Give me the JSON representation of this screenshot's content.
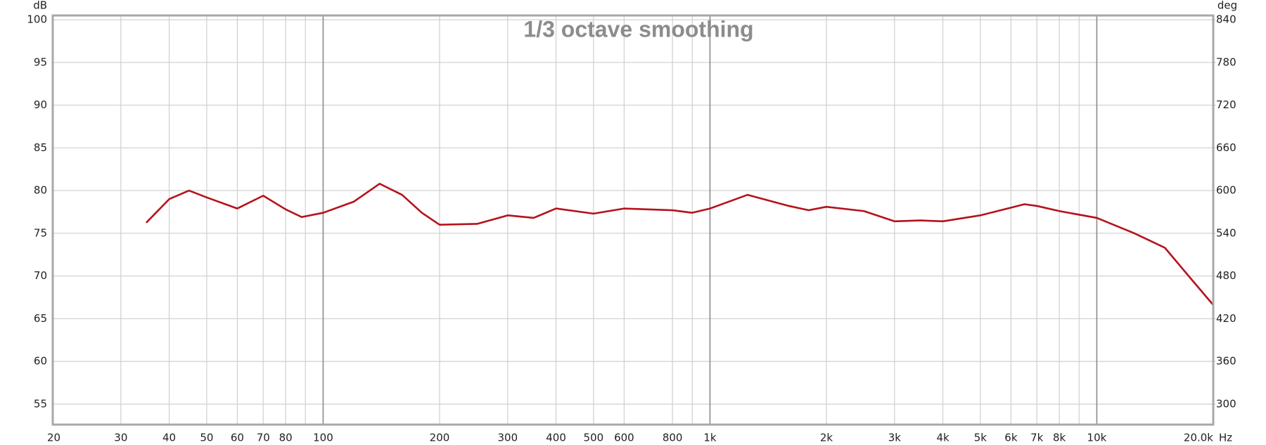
{
  "chart_data": {
    "type": "line",
    "title": "1/3 octave smoothing",
    "y_label": "dB",
    "y2_label": "deg",
    "x_label": "Hz",
    "log_x": true,
    "grid": true,
    "color": "#b5121b",
    "xlim": [
      20,
      20000
    ],
    "ylim": [
      52.6,
      100.5
    ],
    "y2lim": [
      271.2,
      846
    ],
    "yticks": [
      55,
      60,
      65,
      70,
      75,
      80,
      85,
      90,
      95,
      100
    ],
    "y2ticks": [
      300,
      360,
      420,
      480,
      540,
      600,
      660,
      720,
      780,
      840
    ],
    "xticks": [
      20,
      30,
      40,
      50,
      60,
      70,
      80,
      100,
      200,
      300,
      400,
      500,
      600,
      800,
      {
        "value": 1000,
        "label": "1k"
      },
      {
        "value": 2000,
        "label": "2k"
      },
      {
        "value": 3000,
        "label": "3k"
      },
      {
        "value": 4000,
        "label": "4k"
      },
      {
        "value": 5000,
        "label": "5k"
      },
      {
        "value": 6000,
        "label": "6k"
      },
      {
        "value": 7000,
        "label": "7k"
      },
      {
        "value": 8000,
        "label": "8k"
      },
      {
        "value": 10000,
        "label": "10k"
      },
      {
        "value": 20000,
        "label": "20.0k"
      }
    ],
    "xgrid_minor": [
      90,
      900,
      9000
    ],
    "x": [
      35,
      40,
      45,
      50,
      60,
      70,
      80,
      88,
      100,
      120,
      140,
      160,
      180,
      200,
      250,
      300,
      350,
      400,
      500,
      600,
      800,
      900,
      1000,
      1250,
      1600,
      1800,
      2000,
      2500,
      3000,
      3500,
      4000,
      5000,
      6000,
      6500,
      7000,
      8000,
      10000,
      12500,
      15000,
      17500,
      20000
    ],
    "values": [
      76.3,
      79.0,
      80.0,
      79.2,
      77.9,
      79.4,
      77.8,
      76.9,
      77.4,
      78.7,
      80.8,
      79.5,
      77.4,
      76.0,
      76.1,
      77.1,
      76.8,
      77.9,
      77.3,
      77.9,
      77.7,
      77.4,
      77.9,
      79.5,
      78.2,
      77.7,
      78.1,
      77.6,
      76.4,
      76.5,
      76.4,
      77.1,
      78.0,
      78.4,
      78.2,
      77.6,
      76.8,
      75.0,
      73.3,
      69.7,
      66.6
    ]
  }
}
